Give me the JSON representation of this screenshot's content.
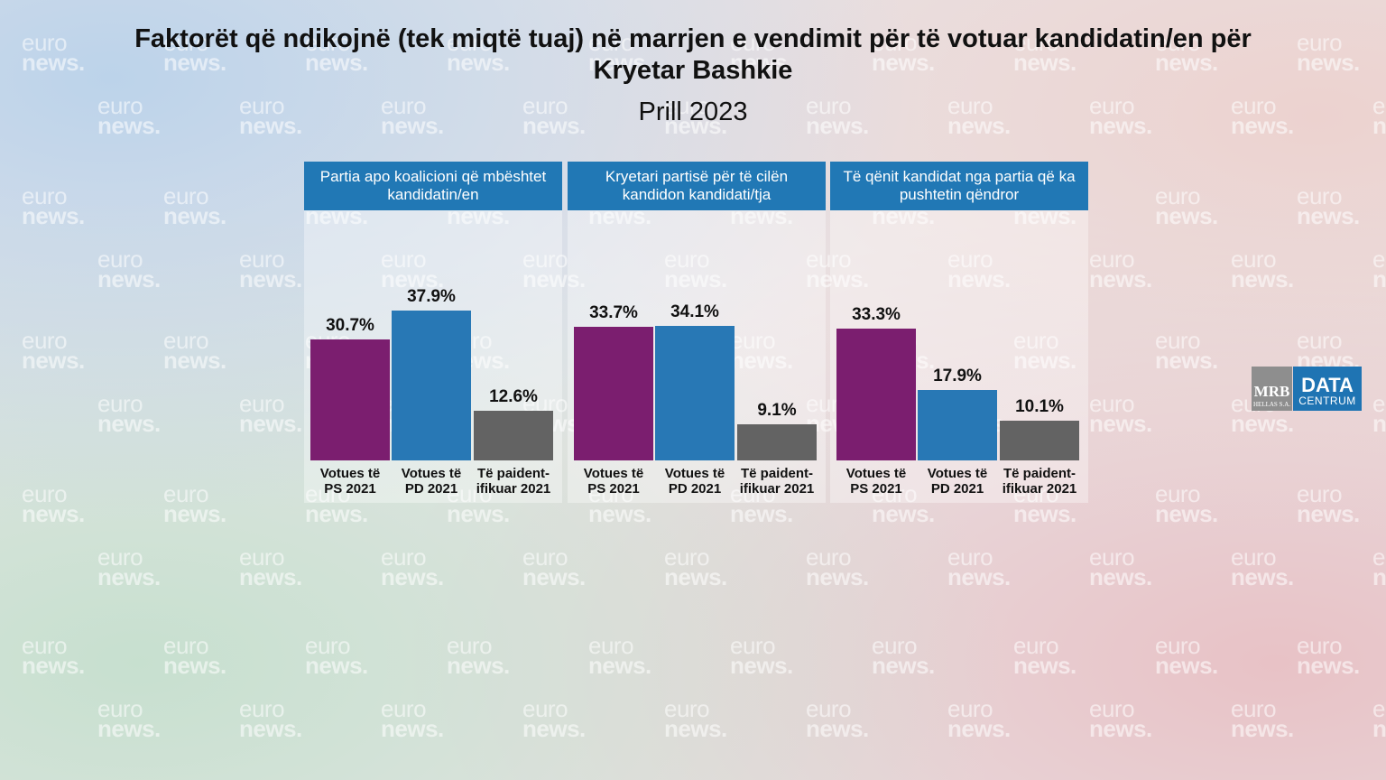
{
  "title": "Faktorët që ndikojnë (tek miqtë tuaj) në marrjen e vendimit për të votuar kandidatin/en për Kryetar Bashkie",
  "subtitle": "Prill 2023",
  "watermark": {
    "line1": "euro",
    "line2": "news."
  },
  "logo": {
    "mrb": "MRB",
    "mrb_sub": "HELLAS S.A.",
    "data": "DATA",
    "centrum": "CENTRUM"
  },
  "colors": {
    "ps": "#7b1e6f",
    "pd": "#2878b5",
    "paid": "#636363",
    "header": "#2178b5"
  },
  "chart_data": [
    {
      "type": "bar",
      "title": "Partia apo koalicioni që mbështet kandidatin/en",
      "categories": [
        "Votues të PS 2021",
        "Votues të PD 2021",
        "Të paidentifikuar 2021"
      ],
      "category_lines": [
        [
          "Votues të",
          "PS 2021"
        ],
        [
          "Votues të",
          "PD 2021"
        ],
        [
          "Të paident-",
          "ifikuar 2021"
        ]
      ],
      "values": [
        30.7,
        37.9,
        12.6
      ],
      "labels": [
        "30.7%",
        "37.9%",
        "12.6%"
      ],
      "ylim": [
        0,
        45
      ]
    },
    {
      "type": "bar",
      "title": "Kryetari partisë për të cilën kandidon kandidati/tja",
      "categories": [
        "Votues të PS 2021",
        "Votues të PD 2021",
        "Të paidentifikuar 2021"
      ],
      "category_lines": [
        [
          "Votues të",
          "PS 2021"
        ],
        [
          "Votues të",
          "PD 2021"
        ],
        [
          "Të paident-",
          "ifikuar 2021"
        ]
      ],
      "values": [
        33.7,
        34.1,
        9.1
      ],
      "labels": [
        "33.7%",
        "34.1%",
        "9.1%"
      ],
      "ylim": [
        0,
        45
      ]
    },
    {
      "type": "bar",
      "title": "Të qënit kandidat nga partia që ka pushtetin qëndror",
      "categories": [
        "Votues të PS 2021",
        "Votues të PD 2021",
        "Të paidentifikuar 2021"
      ],
      "category_lines": [
        [
          "Votues të",
          "PS 2021"
        ],
        [
          "Votues të",
          "PD 2021"
        ],
        [
          "Të paident-",
          "ifikuar 2021"
        ]
      ],
      "values": [
        33.3,
        17.9,
        10.1
      ],
      "labels": [
        "33.3%",
        "17.9%",
        "10.1%"
      ],
      "ylim": [
        0,
        45
      ]
    }
  ]
}
